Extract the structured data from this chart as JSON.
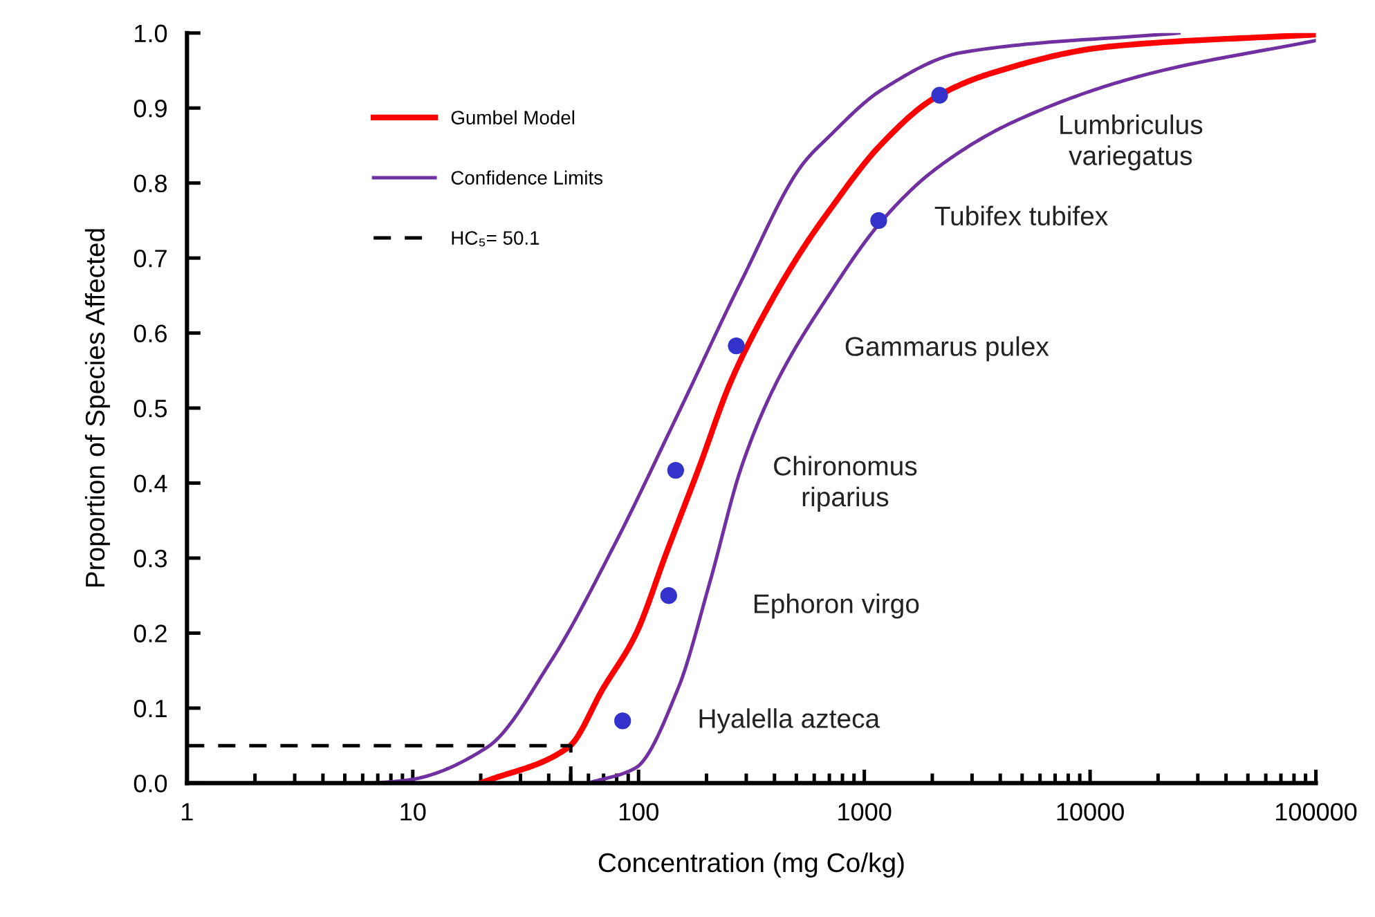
{
  "chart_data": {
    "type": "line",
    "xlabel": "Concentration (mg Co/kg)",
    "ylabel": "Proportion of Species Affected",
    "log": "x",
    "xlim": [
      1,
      100000
    ],
    "xticks": [
      1,
      10,
      100,
      1000,
      10000,
      100000
    ],
    "ylim": [
      0,
      1.0
    ],
    "yticks": [
      {
        "value": 0,
        "label": "0.0"
      },
      0.1,
      0.2,
      0.3,
      0.4,
      0.5,
      0.6,
      0.7,
      0.8,
      0.9,
      {
        "value": 1,
        "label": "1.0"
      }
    ],
    "grid": false,
    "legend": "top left",
    "series": [
      {
        "name": "Gumbel Model",
        "color": "#ff0000",
        "line_style": "solid",
        "x": [
          20,
          49,
          69.9,
          96.7,
          134,
          185,
          256,
          375,
          533,
          687,
          1191,
          2036,
          3532,
          12220,
          100000
        ],
        "values": [
          0,
          0.048,
          0.127,
          0.197,
          0.31,
          0.42,
          0.535,
          0.635,
          0.712,
          0.76,
          0.852,
          0.913,
          0.945,
          0.982,
          0.998
        ]
      },
      {
        "name": "Confidence Limits",
        "color": "#7030a0",
        "line_style": "solid",
        "x": [
          6.7,
          9.5,
          21.4,
          40.8,
          78,
          150,
          286,
          533,
          687,
          1191,
          2700,
          24700
        ],
        "values": [
          0,
          0.004,
          0.048,
          0.162,
          0.317,
          0.493,
          0.67,
          0.825,
          0.86,
          0.924,
          0.974,
          1.0
        ]
      },
      {
        "color": "#7030a0",
        "line_style": "solid",
        "x": [
          59.8,
          96.7,
          150,
          207,
          286,
          402,
          687,
          1191,
          2036,
          4614,
          17870,
          100000
        ],
        "values": [
          0,
          0.02,
          0.127,
          0.268,
          0.422,
          0.53,
          0.648,
          0.749,
          0.817,
          0.882,
          0.945,
          0.99
        ]
      },
      {
        "name": "HC₅= 50.1",
        "color": "#000000",
        "line_style": "dashed",
        "x": [
          1,
          50.1,
          50.1
        ],
        "values": [
          0.05,
          0.05,
          0
        ]
      },
      {
        "type": "scatter",
        "color": "#3333cc",
        "marker": "circle",
        "x": [
          85,
          136,
          146,
          271,
          1158,
          2155
        ],
        "values": [
          0.083,
          0.25,
          0.417,
          0.583,
          0.75,
          0.917
        ]
      }
    ],
    "annotations": [
      "Hyalella azteca",
      "Ephoron virgo",
      "Chironomus\nriparius",
      "Gammarus pulex",
      "Tubifex tubifex",
      "Lumbriculus\nvariegatus"
    ]
  }
}
